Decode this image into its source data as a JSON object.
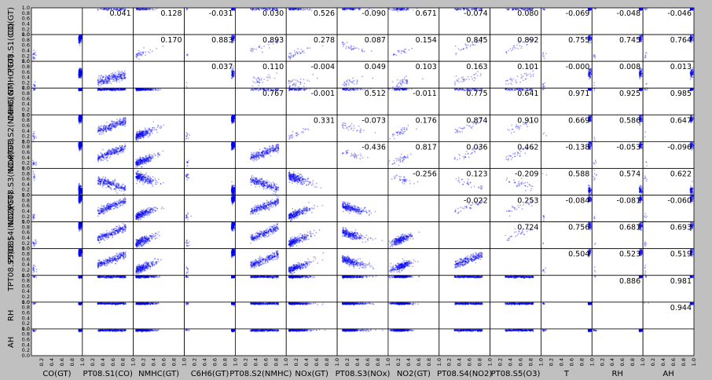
{
  "chart_data": {
    "type": "scatter",
    "variables": [
      "CO(GT)",
      "PT08.S1(CO)",
      "NMHC(GT)",
      "C6H6(GT)",
      "PT08.S2(NMHC)",
      "NOx(GT)",
      "PT08.S3(NOx)",
      "NO2(GT)",
      "PT08.S4(NO2)",
      "PT08.S5(O3)",
      "T",
      "RH",
      "AH"
    ],
    "x_ticks": [
      "0.2",
      "0.4",
      "0.6",
      "0.8",
      "1.0"
    ],
    "y_ticks": [
      "0.0",
      "0.2",
      "0.4",
      "0.6",
      "0.8",
      "1.0"
    ],
    "axis_range": [
      0,
      1
    ],
    "marker_color": "#0000ee",
    "background_color": "#c0c0c0",
    "correlations": [
      {
        "row": 0,
        "col": 2,
        "label": "0.041"
      },
      {
        "row": 0,
        "col": 3,
        "label": "0.128"
      },
      {
        "row": 0,
        "col": 4,
        "label": "-0.031"
      },
      {
        "row": 0,
        "col": 5,
        "label": "0.030"
      },
      {
        "row": 0,
        "col": 6,
        "label": "0.526"
      },
      {
        "row": 0,
        "col": 7,
        "label": "-0.090"
      },
      {
        "row": 0,
        "col": 8,
        "label": "0.671"
      },
      {
        "row": 0,
        "col": 9,
        "label": "-0.074"
      },
      {
        "row": 0,
        "col": 10,
        "label": "0.080"
      },
      {
        "row": 0,
        "col": 11,
        "label": "-0.069"
      },
      {
        "row": 0,
        "col": 12,
        "label": "-0.048"
      },
      {
        "row": 0,
        "col": 13,
        "label": "-0.046"
      },
      {
        "row": 1,
        "col": 3,
        "label": "0.170"
      },
      {
        "row": 1,
        "col": 4,
        "label": "0.883"
      },
      {
        "row": 1,
        "col": 5,
        "label": "0.893"
      },
      {
        "row": 1,
        "col": 6,
        "label": "0.278"
      },
      {
        "row": 1,
        "col": 7,
        "label": "0.087"
      },
      {
        "row": 1,
        "col": 8,
        "label": "0.154"
      },
      {
        "row": 1,
        "col": 9,
        "label": "0.845"
      },
      {
        "row": 1,
        "col": 10,
        "label": "0.892"
      },
      {
        "row": 1,
        "col": 11,
        "label": "0.755"
      },
      {
        "row": 1,
        "col": 12,
        "label": "0.745"
      },
      {
        "row": 1,
        "col": 13,
        "label": "0.764"
      },
      {
        "row": 2,
        "col": 4,
        "label": "0.037"
      },
      {
        "row": 2,
        "col": 5,
        "label": "0.110"
      },
      {
        "row": 2,
        "col": 6,
        "label": "-0.004"
      },
      {
        "row": 2,
        "col": 7,
        "label": "0.049"
      },
      {
        "row": 2,
        "col": 8,
        "label": "0.103"
      },
      {
        "row": 2,
        "col": 9,
        "label": "0.163"
      },
      {
        "row": 2,
        "col": 10,
        "label": "0.101"
      },
      {
        "row": 2,
        "col": 11,
        "label": "-0.000"
      },
      {
        "row": 2,
        "col": 12,
        "label": "0.008"
      },
      {
        "row": 2,
        "col": 13,
        "label": "0.013"
      },
      {
        "row": 3,
        "col": 5,
        "label": "0.767"
      },
      {
        "row": 3,
        "col": 6,
        "label": "-0.001"
      },
      {
        "row": 3,
        "col": 7,
        "label": "0.512"
      },
      {
        "row": 3,
        "col": 8,
        "label": "-0.011"
      },
      {
        "row": 3,
        "col": 9,
        "label": "0.775"
      },
      {
        "row": 3,
        "col": 10,
        "label": "0.641"
      },
      {
        "row": 3,
        "col": 11,
        "label": "0.971"
      },
      {
        "row": 3,
        "col": 12,
        "label": "0.925"
      },
      {
        "row": 3,
        "col": 13,
        "label": "0.985"
      },
      {
        "row": 4,
        "col": 6,
        "label": "0.331"
      },
      {
        "row": 4,
        "col": 7,
        "label": "-0.073"
      },
      {
        "row": 4,
        "col": 8,
        "label": "0.176"
      },
      {
        "row": 4,
        "col": 9,
        "label": "0.874"
      },
      {
        "row": 4,
        "col": 10,
        "label": "0.910"
      },
      {
        "row": 4,
        "col": 11,
        "label": "0.669"
      },
      {
        "row": 4,
        "col": 12,
        "label": "0.586"
      },
      {
        "row": 4,
        "col": 13,
        "label": "0.647"
      },
      {
        "row": 5,
        "col": 7,
        "label": "-0.436"
      },
      {
        "row": 5,
        "col": 8,
        "label": "0.817"
      },
      {
        "row": 5,
        "col": 9,
        "label": "0.036"
      },
      {
        "row": 5,
        "col": 10,
        "label": "0.462"
      },
      {
        "row": 5,
        "col": 11,
        "label": "-0.138"
      },
      {
        "row": 5,
        "col": 12,
        "label": "-0.053"
      },
      {
        "row": 5,
        "col": 13,
        "label": "-0.096"
      },
      {
        "row": 6,
        "col": 8,
        "label": "-0.256"
      },
      {
        "row": 6,
        "col": 9,
        "label": "0.123"
      },
      {
        "row": 6,
        "col": 10,
        "label": "-0.209"
      },
      {
        "row": 6,
        "col": 11,
        "label": "0.588"
      },
      {
        "row": 6,
        "col": 12,
        "label": "0.574"
      },
      {
        "row": 6,
        "col": 13,
        "label": "0.622"
      },
      {
        "row": 7,
        "col": 9,
        "label": "-0.022"
      },
      {
        "row": 7,
        "col": 10,
        "label": "0.253"
      },
      {
        "row": 7,
        "col": 11,
        "label": "-0.084"
      },
      {
        "row": 7,
        "col": 12,
        "label": "-0.081"
      },
      {
        "row": 7,
        "col": 13,
        "label": "-0.060"
      },
      {
        "row": 8,
        "col": 10,
        "label": "0.724"
      },
      {
        "row": 8,
        "col": 11,
        "label": "0.756"
      },
      {
        "row": 8,
        "col": 12,
        "label": "0.681"
      },
      {
        "row": 8,
        "col": 13,
        "label": "0.693"
      },
      {
        "row": 9,
        "col": 11,
        "label": "0.504"
      },
      {
        "row": 9,
        "col": 12,
        "label": "0.523"
      },
      {
        "row": 9,
        "col": 13,
        "label": "0.519"
      },
      {
        "row": 10,
        "col": 12,
        "label": "0.886"
      },
      {
        "row": 10,
        "col": 13,
        "label": "0.981"
      },
      {
        "row": 11,
        "col": 13,
        "label": "0.944"
      }
    ]
  }
}
